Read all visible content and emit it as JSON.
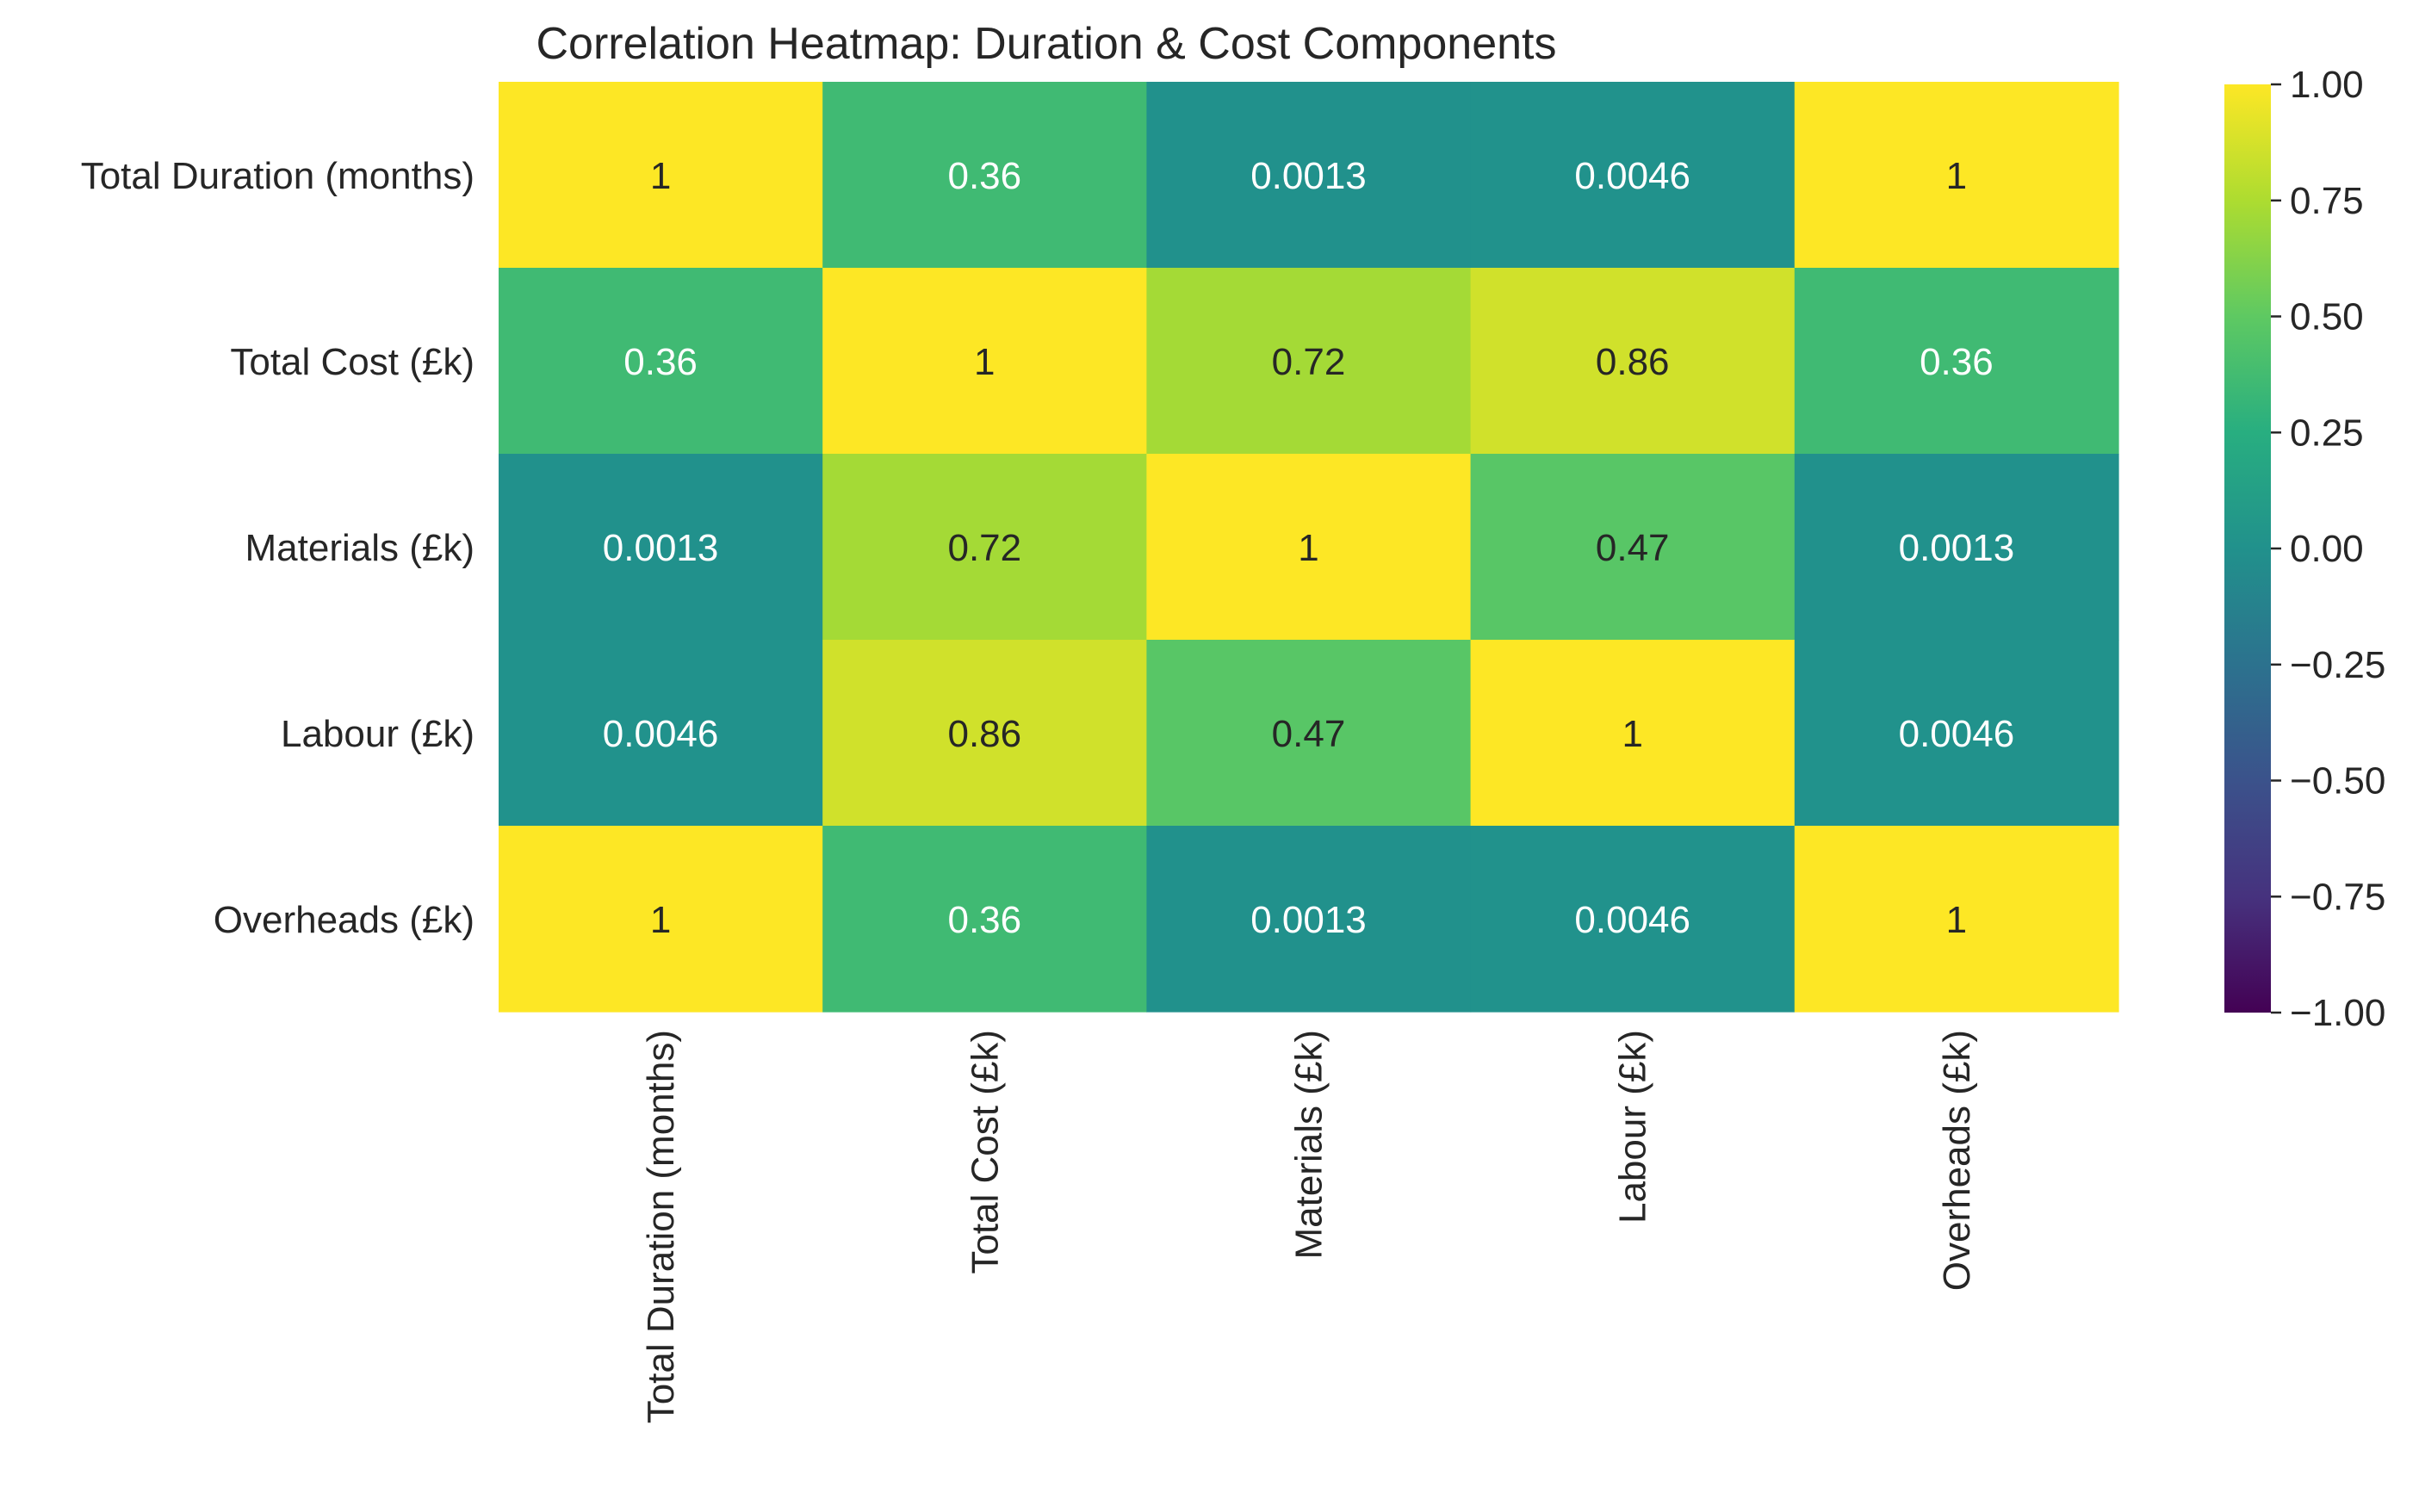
{
  "chart_data": {
    "type": "heatmap",
    "title": "Correlation Heatmap: Duration & Cost Components",
    "row_labels": [
      "Total Duration (months)",
      "Total Cost (£k)",
      "Materials (£k)",
      "Labour (£k)",
      "Overheads (£k)"
    ],
    "column_labels": [
      "Total Duration (months)",
      "Total Cost (£k)",
      "Materials (£k)",
      "Labour (£k)",
      "Overheads (£k)"
    ],
    "values": [
      [
        1,
        0.36,
        0.0013,
        0.0046,
        1
      ],
      [
        0.36,
        1,
        0.72,
        0.86,
        0.36
      ],
      [
        0.0013,
        0.72,
        1,
        0.47,
        0.0013
      ],
      [
        0.0046,
        0.86,
        0.47,
        1,
        0.0046
      ],
      [
        1,
        0.36,
        0.0013,
        0.0046,
        1
      ]
    ],
    "cell_labels": [
      [
        "1",
        "0.36",
        "0.0013",
        "0.0046",
        "1"
      ],
      [
        "0.36",
        "1",
        "0.72",
        "0.86",
        "0.36"
      ],
      [
        "0.0013",
        "0.72",
        "1",
        "0.47",
        "0.0013"
      ],
      [
        "0.0046",
        "0.86",
        "0.47",
        "1",
        "0.0046"
      ],
      [
        "1",
        "0.36",
        "0.0013",
        "0.0046",
        "1"
      ]
    ],
    "colormap": "viridis",
    "vmin": -1,
    "vmax": 1,
    "colorbar": {
      "ticks": [
        1,
        0.75,
        0.5,
        0.25,
        0,
        -0.25,
        -0.5,
        -0.75,
        -1
      ],
      "tick_labels": [
        "1.00",
        "0.75",
        "0.50",
        "0.25",
        "0.00",
        "−0.25",
        "−0.50",
        "−0.75",
        "−1.00"
      ]
    },
    "grid": false
  }
}
